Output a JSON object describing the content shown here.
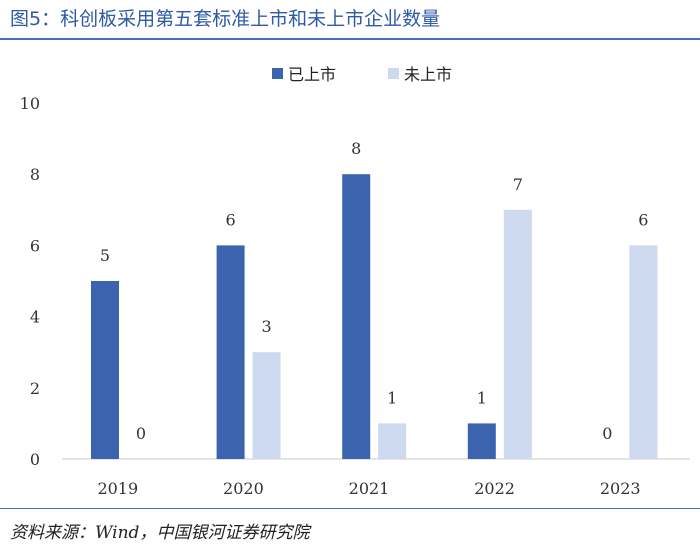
{
  "header": {
    "title": "图5：科创板采用第五套标准上市和未上市企业数量"
  },
  "footer": {
    "source": "资料来源：Wind，中国银河证券研究院"
  },
  "colors": {
    "listed": "#3b63ae",
    "unlisted": "#ccd9ee",
    "rule": "#4a6fb5",
    "title": "#2f5aa8"
  },
  "chart_data": {
    "type": "bar",
    "title": "科创板采用第五套标准上市和未上市企业数量",
    "categories": [
      "2019",
      "2020",
      "2021",
      "2022",
      "2023"
    ],
    "series": [
      {
        "name": "已上市",
        "values": [
          5,
          6,
          8,
          1,
          0
        ]
      },
      {
        "name": "未上市",
        "values": [
          0,
          3,
          1,
          7,
          6
        ]
      }
    ],
    "ylim": [
      0,
      10
    ],
    "yticks": [
      0,
      2,
      4,
      6,
      8,
      10
    ],
    "xlabel": "",
    "ylabel": "",
    "legend": "top-center",
    "grid": false
  }
}
